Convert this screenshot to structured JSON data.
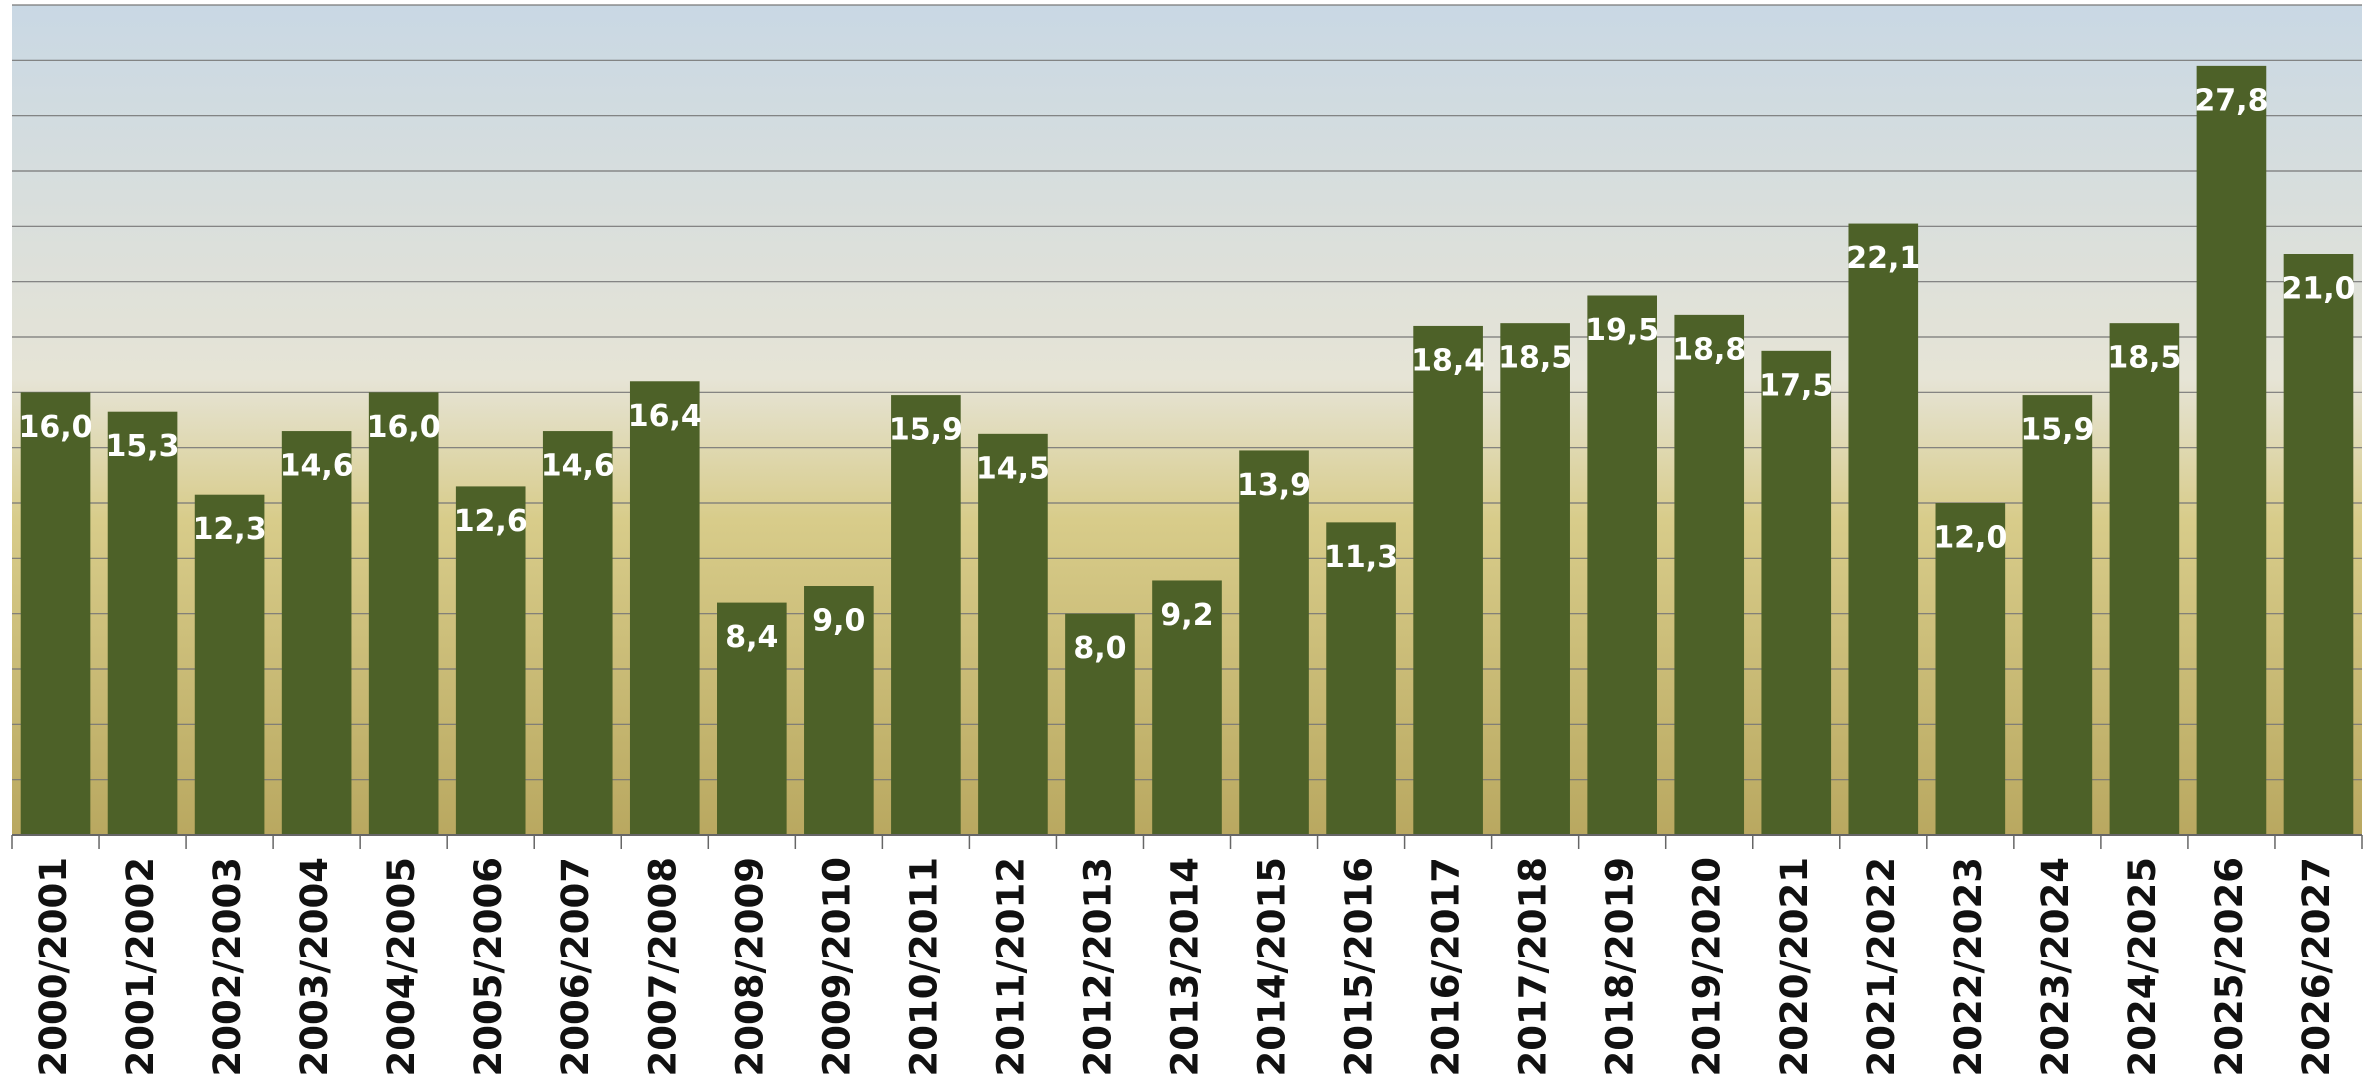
{
  "chart_data": {
    "type": "bar",
    "categories": [
      "2000/2001",
      "2001/2002",
      "2002/2003",
      "2003/2004",
      "2004/2005",
      "2005/2006",
      "2006/2007",
      "2007/2008",
      "2008/2009",
      "2009/2010",
      "2010/2011",
      "2011/2012",
      "2012/2013",
      "2013/2014",
      "2014/2015",
      "2015/2016",
      "2016/2017",
      "2017/2018",
      "2018/2019",
      "2019/2020",
      "2020/2021",
      "2021/2022",
      "2022/2023",
      "2023/2024",
      "2024/2025",
      "2025/2026",
      "2026/2027"
    ],
    "values": [
      16.0,
      15.3,
      12.3,
      14.6,
      16.0,
      12.6,
      14.6,
      16.4,
      8.4,
      9.0,
      15.9,
      14.5,
      8.0,
      9.2,
      13.9,
      11.3,
      18.4,
      18.5,
      19.5,
      18.8,
      17.5,
      22.1,
      12.0,
      15.9,
      18.5,
      27.8,
      21.0
    ],
    "value_labels": [
      "16,0",
      "15,3",
      "12,3",
      "14,6",
      "16,0",
      "12,6",
      "14,6",
      "16,4",
      "8,4",
      "9,0",
      "15,9",
      "14,5",
      "8,0",
      "9,2",
      "13,9",
      "11,3",
      "18,4",
      "18,5",
      "19,5",
      "18,8",
      "17,5",
      "22,1",
      "12,0",
      "15,9",
      "18,5",
      "27,8",
      "21,0"
    ],
    "color": "#4d6128",
    "ylim": [
      0,
      30
    ],
    "yticks": [
      0,
      2,
      4,
      6,
      8,
      10,
      12,
      14,
      16,
      18,
      20,
      22,
      24,
      26,
      28,
      30
    ],
    "grid": true
  }
}
